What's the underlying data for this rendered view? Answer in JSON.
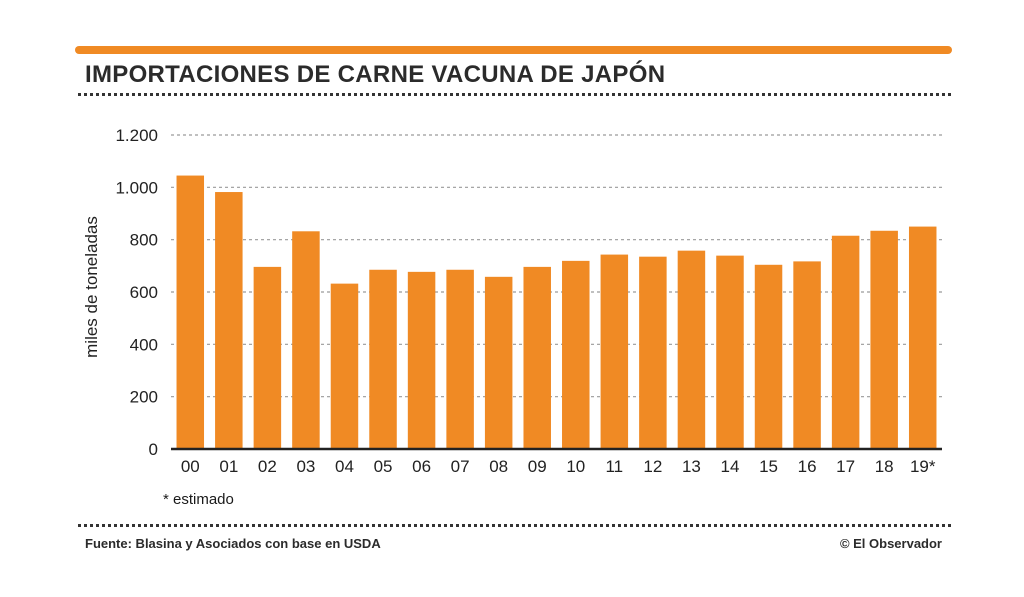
{
  "header": {
    "title": "IMPORTACIONES DE CARNE VACUNA DE JAPÓN"
  },
  "colors": {
    "accent": "#f08a24",
    "bar": "#f08a24",
    "text": "#2b2b2b",
    "grid": "#9a9a9a"
  },
  "chart_data": {
    "type": "bar",
    "title": "IMPORTACIONES DE CARNE VACUNA DE JAPÓN",
    "xlabel": "",
    "ylabel": "miles de toneladas",
    "categories": [
      "00",
      "01",
      "02",
      "03",
      "04",
      "05",
      "06",
      "07",
      "08",
      "09",
      "10",
      "11",
      "12",
      "13",
      "14",
      "15",
      "16",
      "17",
      "18",
      "19*"
    ],
    "values": [
      1045,
      982,
      696,
      832,
      632,
      685,
      677,
      685,
      658,
      696,
      719,
      743,
      735,
      758,
      739,
      704,
      717,
      815,
      834,
      850
    ],
    "ylim": [
      0,
      1200
    ],
    "yticks": [
      0,
      200,
      400,
      600,
      800,
      1000,
      1200
    ],
    "ytick_labels": [
      "0",
      "200",
      "400",
      "600",
      "800",
      "1.000",
      "1.200"
    ],
    "grid": true
  },
  "footnote": "* estimado",
  "footer": {
    "source": "Fuente: Blasina y Asociados con base en USDA",
    "credit": "© El Observador"
  }
}
